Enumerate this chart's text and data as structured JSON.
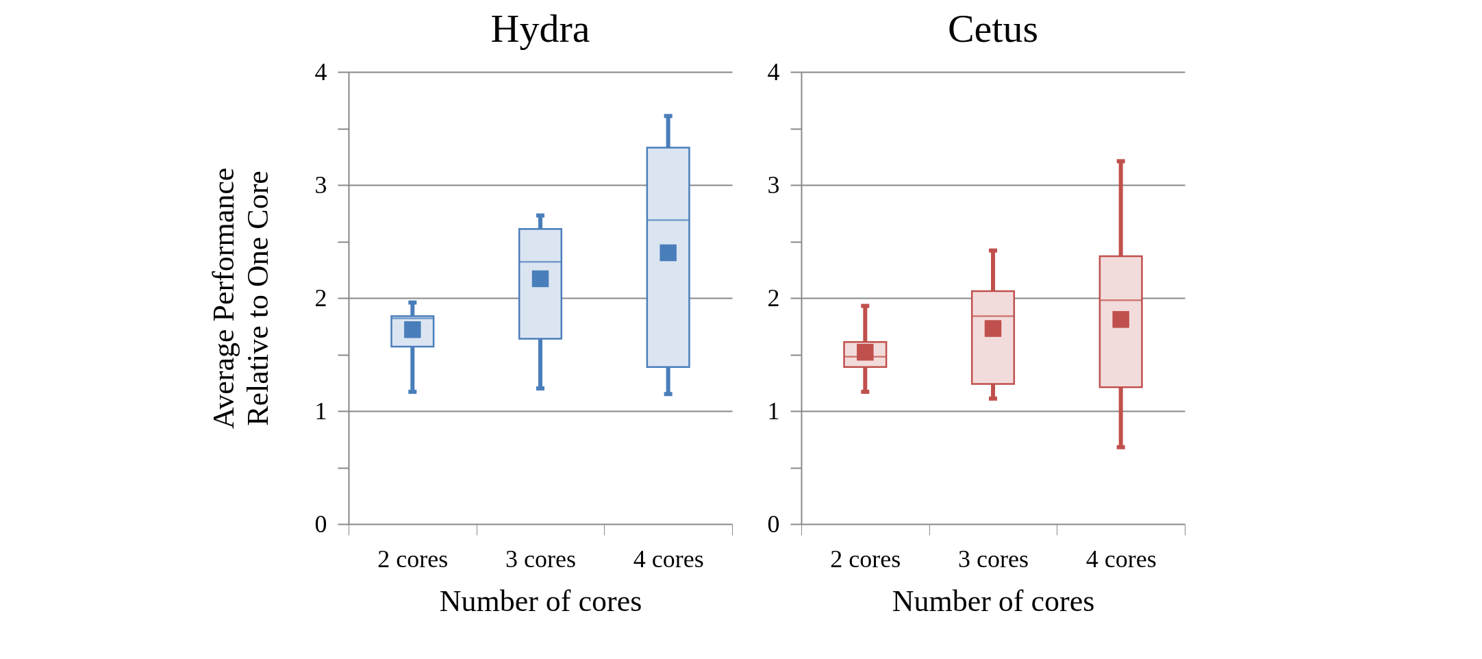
{
  "chart_data": [
    {
      "type": "box",
      "title": "Hydra",
      "xlabel": "Number of cores",
      "ylabel": "Average Performance\nRelative to One Core",
      "categories": [
        "2 cores",
        "3 cores",
        "4 cores"
      ],
      "color": "#4a7ebb",
      "marker": "square",
      "grid": "y",
      "ylim": [
        0,
        4
      ],
      "yticks": [
        0,
        {
          "value": 0.5,
          "label": null
        },
        1,
        {
          "value": 1.5,
          "label": null
        },
        2,
        {
          "value": 2.5,
          "label": null
        },
        3,
        {
          "value": 3.5,
          "label": null
        },
        4
      ],
      "boxes": [
        {
          "low": 1.17,
          "q1": 1.57,
          "median": 1.82,
          "q3": 1.84,
          "high": 1.96,
          "mean": 1.72
        },
        {
          "low": 1.2,
          "q1": 1.64,
          "median": 2.32,
          "q3": 2.61,
          "high": 2.73,
          "mean": 2.17
        },
        {
          "low": 1.15,
          "q1": 1.39,
          "median": 2.69,
          "q3": 3.33,
          "high": 3.61,
          "mean": 2.4
        }
      ]
    },
    {
      "type": "box",
      "title": "Cetus",
      "xlabel": "Number of cores",
      "categories": [
        "2 cores",
        "3 cores",
        "4 cores"
      ],
      "color": "#c0504d",
      "marker": "square",
      "grid": "y",
      "ylim": [
        0,
        4
      ],
      "yticks": [
        0,
        {
          "value": 0.5,
          "label": null
        },
        1,
        {
          "value": 1.5,
          "label": null
        },
        2,
        {
          "value": 2.5,
          "label": null
        },
        3,
        {
          "value": 3.5,
          "label": null
        },
        4
      ],
      "boxes": [
        {
          "low": 1.17,
          "q1": 1.39,
          "median": 1.48,
          "q3": 1.61,
          "high": 1.93,
          "mean": 1.52
        },
        {
          "low": 1.11,
          "q1": 1.24,
          "median": 1.84,
          "q3": 2.06,
          "high": 2.42,
          "mean": 1.73
        },
        {
          "low": 0.68,
          "q1": 1.21,
          "median": 1.98,
          "q3": 2.37,
          "high": 3.21,
          "mean": 1.81
        }
      ]
    }
  ]
}
